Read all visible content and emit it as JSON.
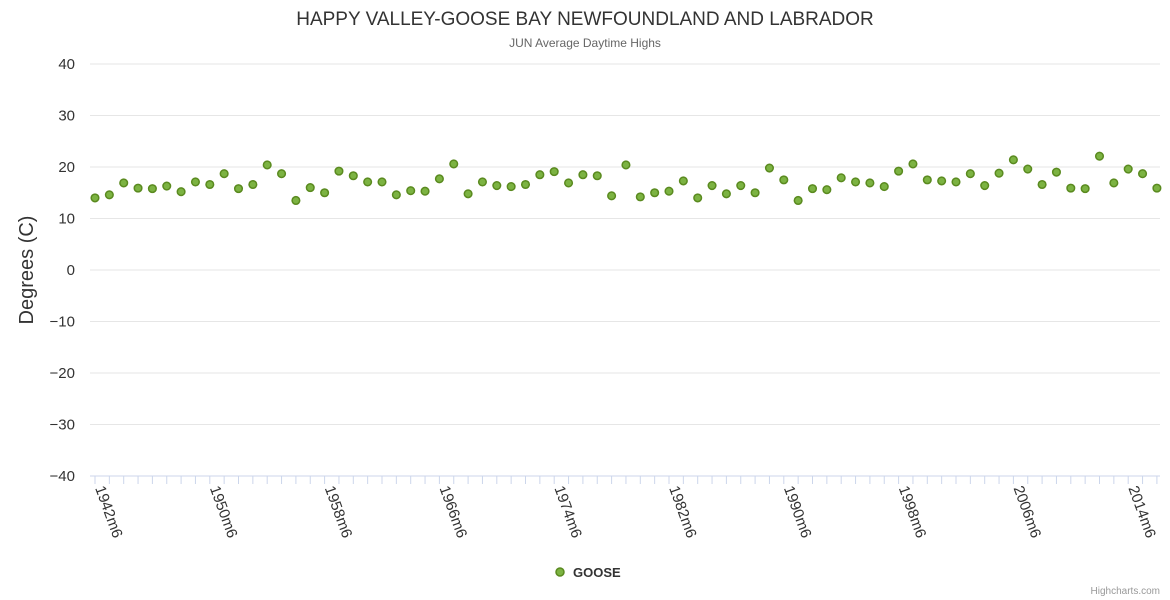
{
  "chart_data": {
    "type": "scatter",
    "title": "HAPPY VALLEY-GOOSE BAY NEWFOUNDLAND AND LABRADOR",
    "subtitle": "JUN Average Daytime Highs",
    "ylabel": "Degrees (C)",
    "xlabel": "",
    "ylim": [
      -40,
      40
    ],
    "yticks": [
      40,
      30,
      20,
      10,
      0,
      -10,
      -20,
      -30,
      -40
    ],
    "x_labels": [
      "1942m6",
      "1950m6",
      "1958m6",
      "1966m6",
      "1974m6",
      "1982m6",
      "1990m6",
      "1998m6",
      "2006m6",
      "2014m6"
    ],
    "x_start_year": 1942,
    "x_end_year": 2016,
    "series": [
      {
        "name": "GOOSE",
        "color": "#7cb342",
        "x": [
          1942,
          1943,
          1944,
          1945,
          1946,
          1947,
          1948,
          1949,
          1950,
          1951,
          1952,
          1953,
          1954,
          1955,
          1956,
          1957,
          1958,
          1959,
          1960,
          1961,
          1962,
          1963,
          1964,
          1965,
          1966,
          1967,
          1968,
          1969,
          1970,
          1971,
          1972,
          1973,
          1974,
          1975,
          1976,
          1977,
          1978,
          1979,
          1980,
          1981,
          1982,
          1983,
          1984,
          1985,
          1986,
          1987,
          1988,
          1989,
          1990,
          1991,
          1992,
          1993,
          1994,
          1995,
          1996,
          1997,
          1998,
          1999,
          2000,
          2001,
          2002,
          2003,
          2004,
          2005,
          2006,
          2007,
          2008,
          2009,
          2010,
          2011,
          2012,
          2013,
          2014,
          2015,
          2016
        ],
        "values": [
          14.0,
          14.6,
          16.9,
          15.9,
          15.8,
          16.3,
          15.2,
          17.1,
          16.6,
          18.7,
          15.8,
          16.6,
          20.4,
          18.7,
          13.5,
          16.0,
          15.0,
          19.2,
          18.3,
          17.1,
          17.1,
          14.6,
          15.4,
          15.3,
          17.7,
          20.6,
          14.8,
          17.1,
          16.4,
          16.2,
          16.6,
          18.5,
          19.1,
          16.9,
          18.5,
          18.3,
          14.4,
          20.4,
          14.2,
          15.0,
          15.3,
          17.3,
          14.0,
          16.4,
          14.8,
          16.4,
          15.0,
          19.8,
          17.5,
          13.5,
          15.8,
          15.6,
          17.9,
          17.1,
          16.9,
          16.2,
          19.2,
          20.6,
          17.5,
          17.3,
          17.1,
          18.7,
          16.4,
          18.8,
          21.4,
          19.6,
          16.6,
          19.0,
          15.9,
          15.8,
          22.1,
          16.9,
          19.6,
          18.7,
          15.9
        ]
      }
    ]
  },
  "legend": {
    "label": "GOOSE",
    "position": "bottom-center"
  },
  "credits": "Highcharts.com"
}
